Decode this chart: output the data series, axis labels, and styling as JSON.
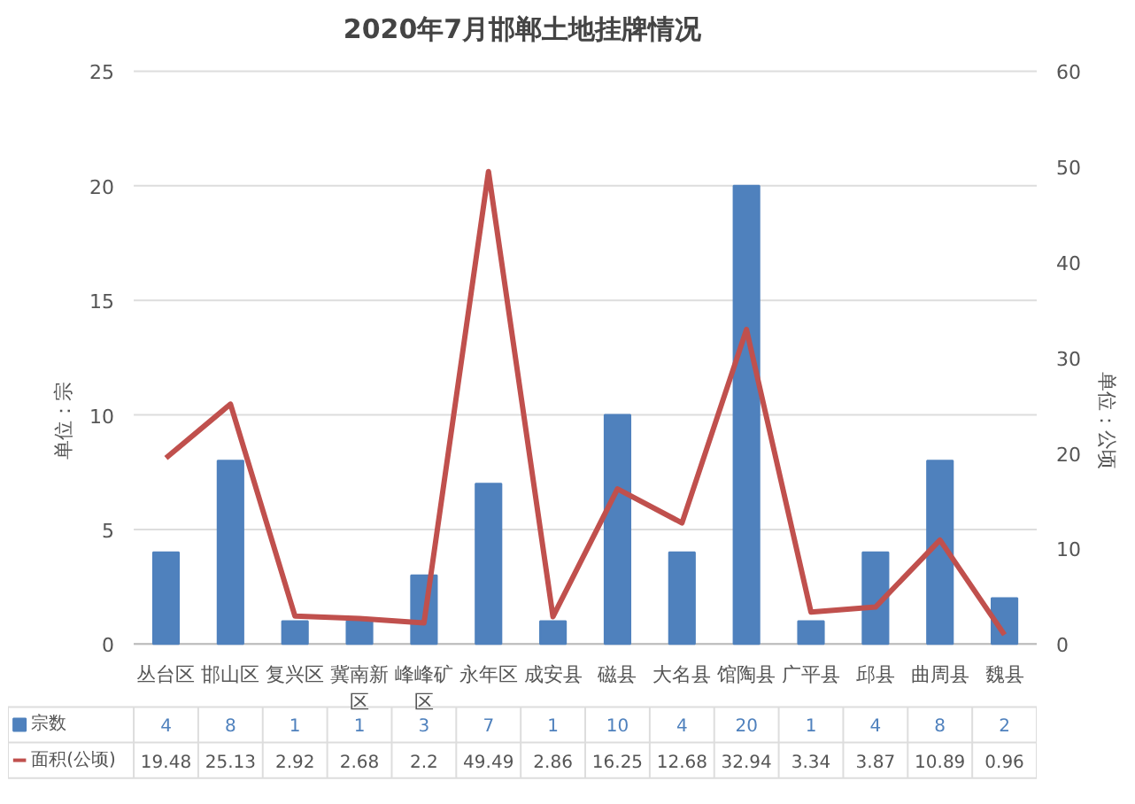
{
  "chart_data": {
    "type": "bar",
    "title": "2020年7月邯郸土地挂牌情况",
    "ylabel": "单位：宗",
    "y2label": "单位：公顷",
    "categories": [
      "丛台区",
      "邯山区",
      "复兴区",
      "冀南新区",
      "峰峰矿区",
      "永年区",
      "成安县",
      "磁县",
      "大名县",
      "馆陶县",
      "广平县",
      "邱县",
      "曲周县",
      "魏县"
    ],
    "series": [
      {
        "name": "宗数",
        "color": "#4f81bd",
        "values": [
          4,
          8,
          1,
          1,
          3,
          7,
          1,
          10,
          4,
          20,
          1,
          4,
          8,
          2
        ]
      },
      {
        "name": "面积(公顷)",
        "type": "line",
        "axis": "y2",
        "color": "#c0504d",
        "values": [
          19.48,
          25.13,
          2.92,
          2.68,
          2.2,
          49.49,
          2.86,
          16.25,
          12.68,
          32.94,
          3.34,
          3.87,
          10.89,
          0.96
        ]
      }
    ],
    "ylim": [
      0,
      25
    ],
    "yticks": [
      0,
      5,
      10,
      15,
      20,
      25
    ],
    "y2lim": [
      0,
      60
    ],
    "y2ticks": [
      0,
      10,
      20,
      30,
      40,
      50,
      60
    ],
    "grid": "y",
    "data_labels": true,
    "legend": "bottom left"
  }
}
